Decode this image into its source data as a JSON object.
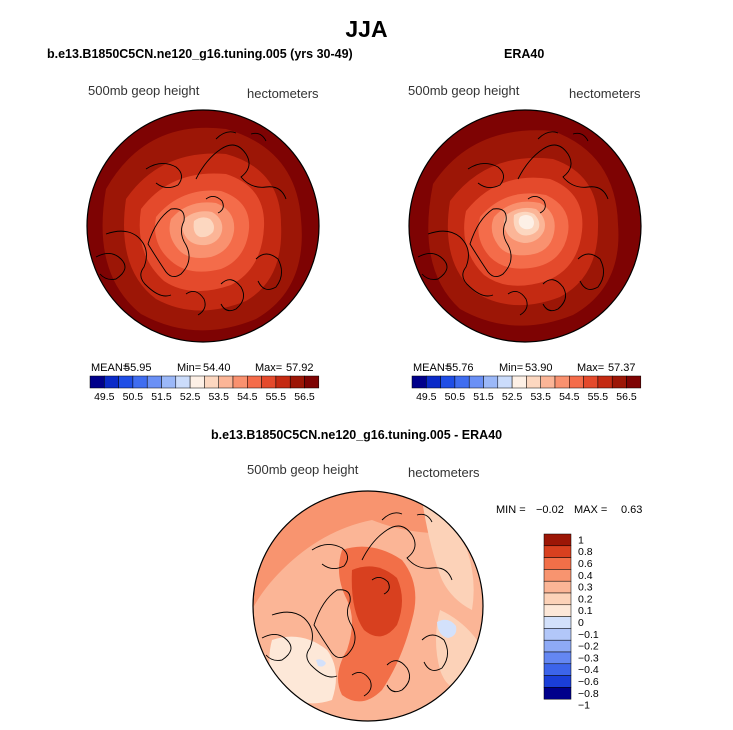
{
  "season": "JJA",
  "field_label": "500mb geop height",
  "units_label": "hectometers",
  "panels": [
    {
      "title": "b.e13.B1850C5CN.ne120_g16.tuning.005 (yrs 30-49)",
      "mean_label": "MEAN=",
      "mean": "55.95",
      "min_label": "Min=",
      "min": "54.40",
      "max_label": "Max=",
      "max": "57.92"
    },
    {
      "title": "ERA40",
      "mean_label": "MEAN=",
      "mean": "55.76",
      "min_label": "Min=",
      "min": "53.90",
      "max_label": "Max=",
      "max": "57.37"
    }
  ],
  "diff_panel": {
    "title": "b.e13.B1850C5CN.ne120_g16.tuning.005 - ERA40",
    "min_label": "MIN =",
    "min": "−0.02",
    "max_label": "MAX =",
    "max": "0.63"
  },
  "colors": {
    "abs_scale": [
      "#00008b",
      "#0a2ac8",
      "#1f4ee6",
      "#3f6df0",
      "#6a90f5",
      "#9bb8f8",
      "#cbdcfb",
      "#fdf0e6",
      "#fcd7c0",
      "#fbb597",
      "#f9916f",
      "#f46c4a",
      "#e44a2c",
      "#c42a12",
      "#9c1606",
      "#7e0303"
    ],
    "diff_scale": [
      "#00008b",
      "#1a3ed8",
      "#3c64ea",
      "#6487f2",
      "#8eaaf6",
      "#b2c7f9",
      "#d3e1fb",
      "#fde8d8",
      "#fcd2b8",
      "#fbb596",
      "#f8946f",
      "#f26f48",
      "#d8401f",
      "#9c1606"
    ]
  },
  "chart_data": [
    {
      "type": "heatmap",
      "projection": "polar stereographic (north pole)",
      "title": "b.e13.B1850C5CN.ne120_g16.tuning.005 (yrs 30-49)",
      "field": "500mb geop height",
      "units": "hectometers",
      "contour_levels": [
        49.5,
        50.5,
        51.5,
        52.5,
        53.5,
        54.5,
        55.5,
        56.5
      ],
      "colorbar_ticks": [
        "49.5",
        "50.5",
        "51.5",
        "52.5",
        "53.5",
        "54.5",
        "55.5",
        "56.5"
      ],
      "stats": {
        "mean": 55.95,
        "min": 54.4,
        "max": 57.92
      }
    },
    {
      "type": "heatmap",
      "projection": "polar stereographic (north pole)",
      "title": "ERA40",
      "field": "500mb geop height",
      "units": "hectometers",
      "contour_levels": [
        49.5,
        50.5,
        51.5,
        52.5,
        53.5,
        54.5,
        55.5,
        56.5
      ],
      "colorbar_ticks": [
        "49.5",
        "50.5",
        "51.5",
        "52.5",
        "53.5",
        "54.5",
        "55.5",
        "56.5"
      ],
      "stats": {
        "mean": 55.76,
        "min": 53.9,
        "max": 57.37
      }
    },
    {
      "type": "heatmap",
      "projection": "polar stereographic (north pole)",
      "title": "b.e13.B1850C5CN.ne120_g16.tuning.005 - ERA40",
      "field": "500mb geop height",
      "units": "hectometers",
      "contour_levels": [
        -1,
        -0.8,
        -0.6,
        -0.4,
        -0.3,
        -0.2,
        -0.1,
        0,
        0.1,
        0.2,
        0.3,
        0.4,
        0.6,
        0.8,
        1
      ],
      "colorbar_ticks": [
        "1",
        "0.8",
        "0.6",
        "0.4",
        "0.3",
        "0.2",
        "0.1",
        "0",
        "−0.1",
        "−0.2",
        "−0.3",
        "−0.4",
        "−0.6",
        "−0.8",
        "−1"
      ],
      "stats": {
        "min": -0.02,
        "max": 0.63
      }
    }
  ]
}
